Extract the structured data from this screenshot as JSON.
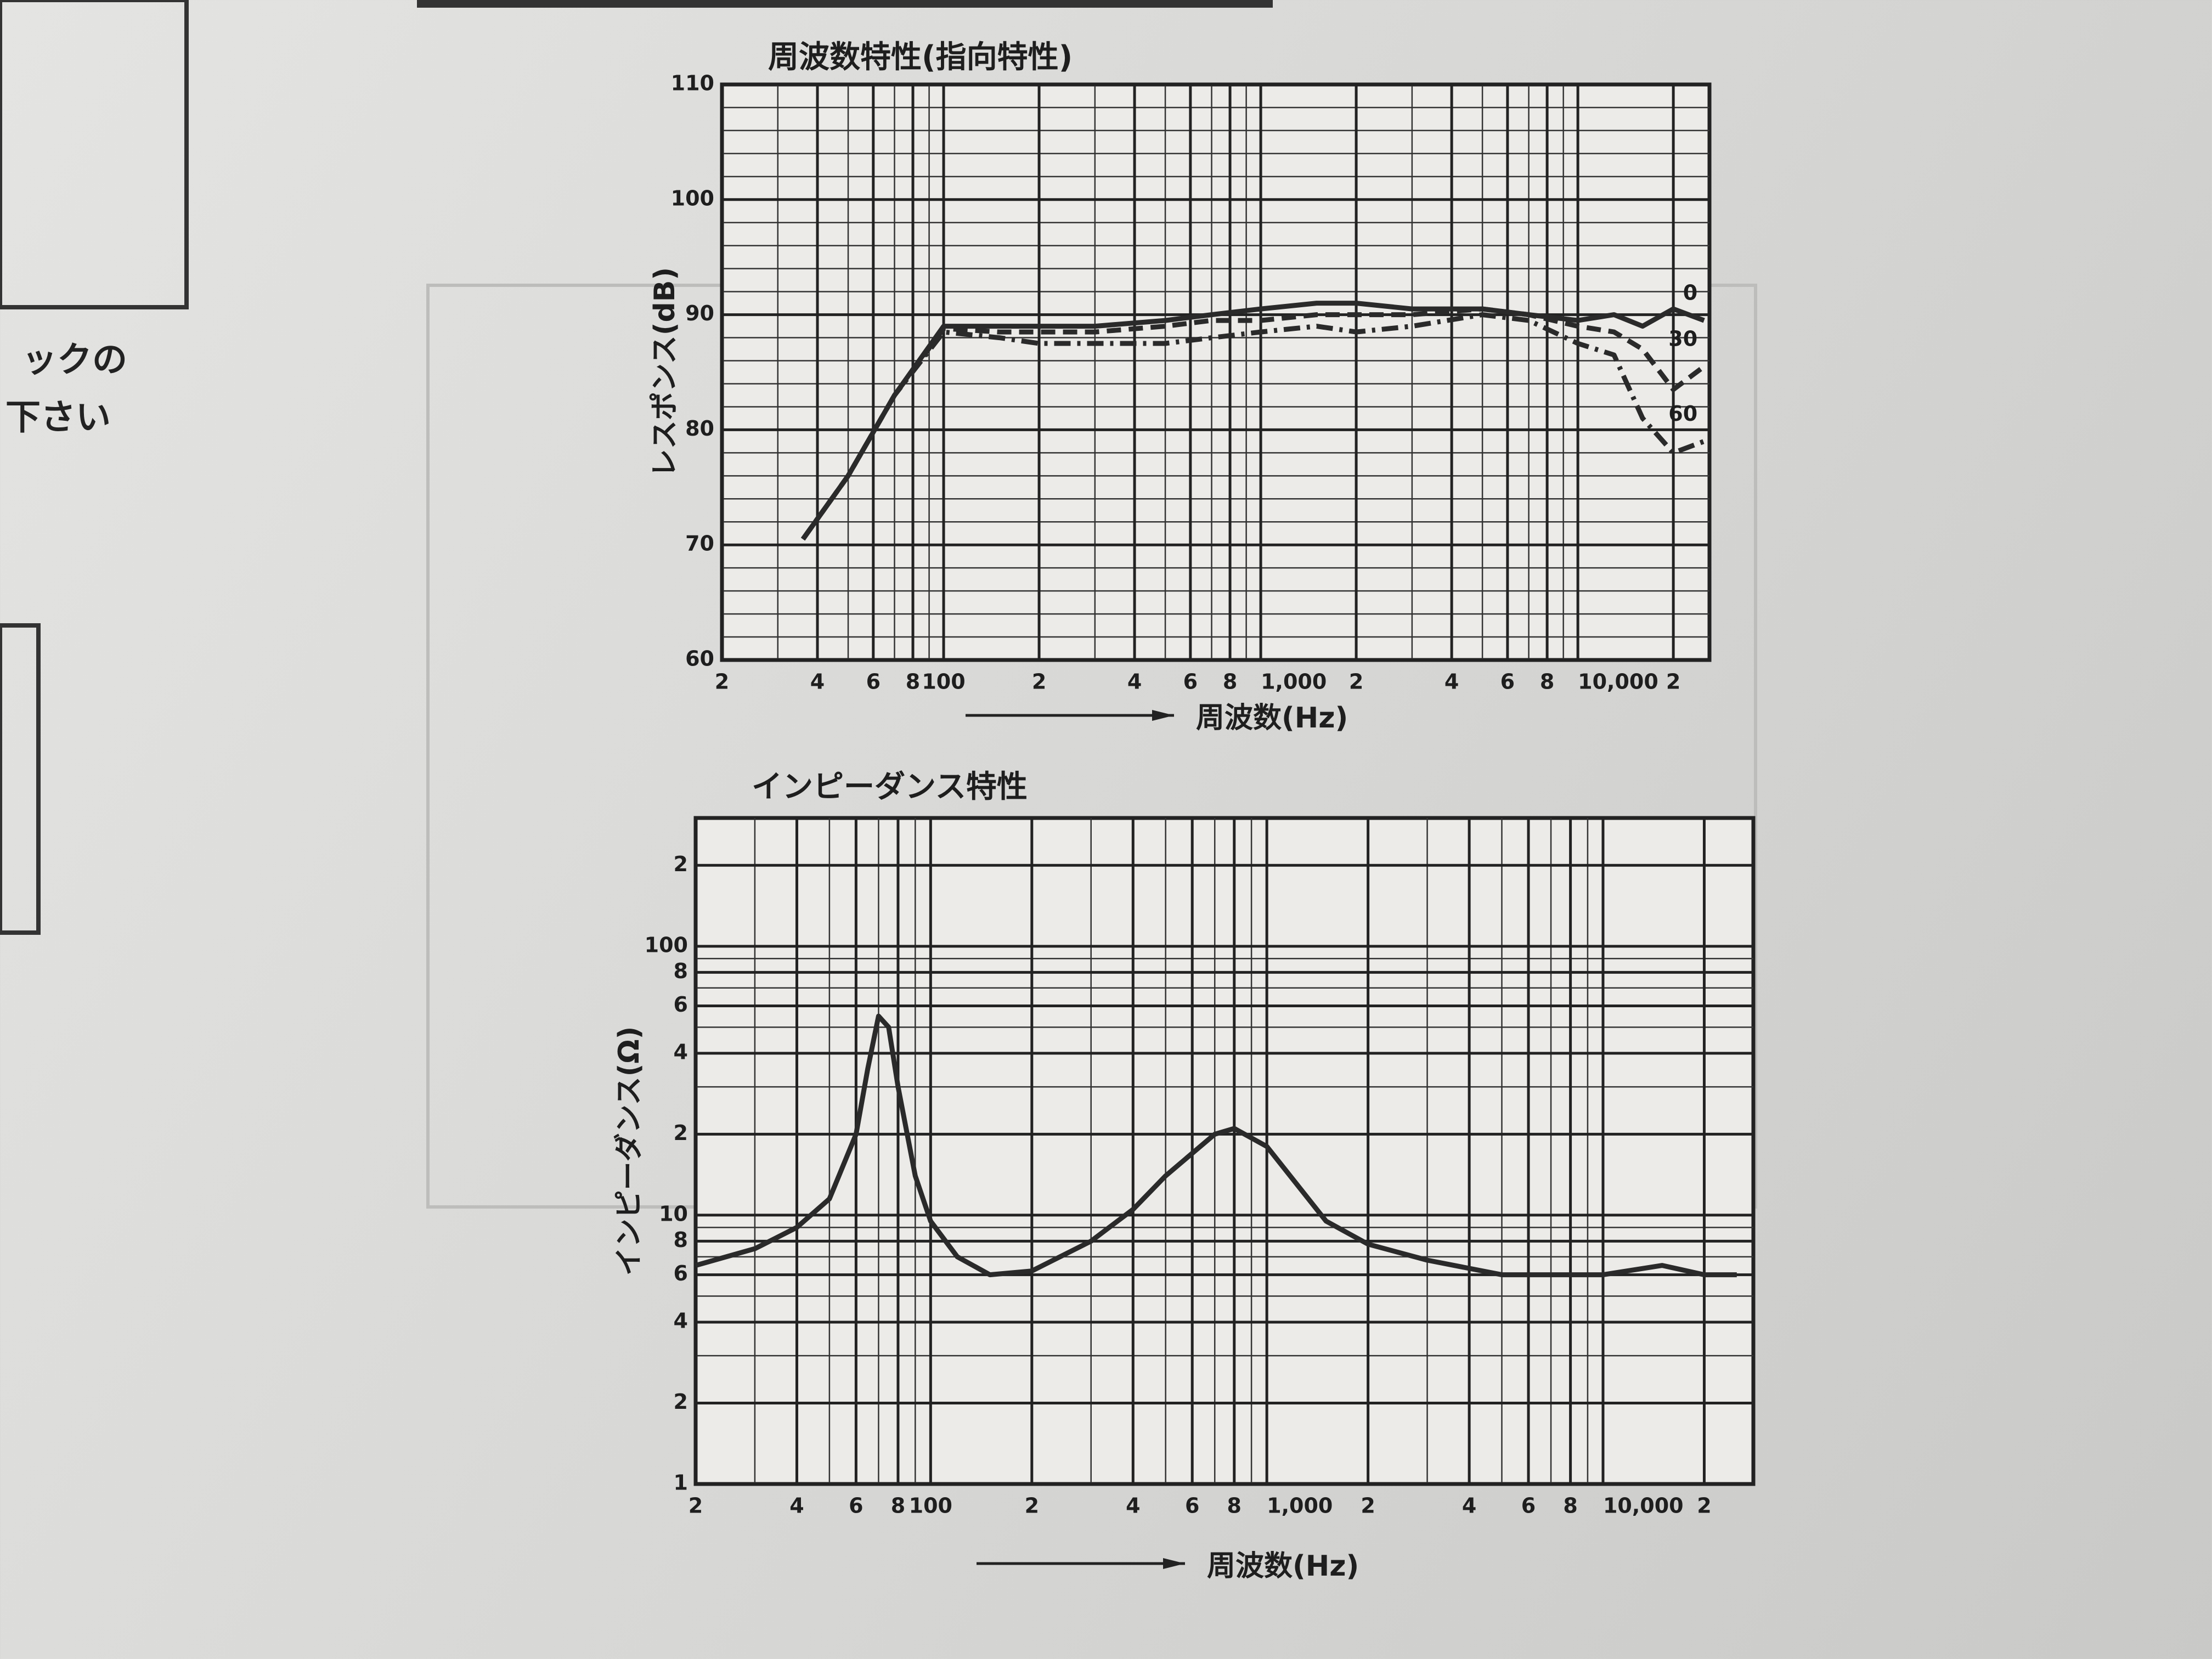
{
  "margin_text": [
    "ックの",
    "下さい"
  ],
  "chart_data": [
    {
      "type": "line",
      "title": "周波数特性(指向特性)",
      "x_label": "周波数(Hz)",
      "y_label": "レスポンス(dB)",
      "x_log": true,
      "y_log": false,
      "grid": true,
      "minor_grid": true,
      "xlim": [
        20,
        26000
      ],
      "ylim": [
        60,
        110
      ],
      "xticks": [
        {
          "value": 20,
          "label": "2"
        },
        {
          "value": 40,
          "label": "4"
        },
        {
          "value": 60,
          "label": "6"
        },
        {
          "value": 80,
          "label": "8"
        },
        100,
        {
          "value": 200,
          "label": "2"
        },
        {
          "value": 400,
          "label": "4"
        },
        {
          "value": 600,
          "label": "6"
        },
        {
          "value": 800,
          "label": "8"
        },
        {
          "value": 1000,
          "label": "1,000"
        },
        {
          "value": 2000,
          "label": "2"
        },
        {
          "value": 4000,
          "label": "4"
        },
        {
          "value": 6000,
          "label": "6"
        },
        {
          "value": 8000,
          "label": "8"
        },
        {
          "value": 10000,
          "label": "10,000"
        },
        {
          "value": 20000,
          "label": "2"
        }
      ],
      "yticks": [
        60,
        70,
        80,
        90,
        100,
        110
      ],
      "x": [
        36,
        50,
        70,
        100,
        150,
        200,
        300,
        500,
        700,
        1000,
        1500,
        2000,
        3000,
        5000,
        7000,
        10000,
        13000,
        16000,
        20000,
        25000
      ],
      "series": [
        {
          "name": "0",
          "color": "#2a2a2a",
          "dash": "solid",
          "values": [
            70.5,
            76,
            83,
            89,
            89,
            89,
            89,
            89.5,
            90,
            90.5,
            91,
            91,
            90.5,
            90.5,
            90,
            89.5,
            90,
            89,
            90.5,
            89.5
          ]
        },
        {
          "name": "30",
          "color": "#2a2a2a",
          "dash": "dashed",
          "values": [
            70.5,
            76,
            83,
            88.8,
            88.5,
            88.5,
            88.5,
            89,
            89.5,
            89.5,
            90,
            90,
            90,
            90.5,
            90,
            89,
            88.5,
            87,
            83.5,
            85.5
          ]
        },
        {
          "name": "60",
          "color": "#2a2a2a",
          "dash": "dashdot",
          "values": [
            70.5,
            76,
            83,
            88.5,
            88,
            87.5,
            87.5,
            87.5,
            88,
            88.5,
            89,
            88.5,
            89,
            90,
            89.5,
            87.5,
            86.5,
            81,
            78,
            79
          ]
        }
      ]
    },
    {
      "type": "line",
      "title": "インピーダンス特性",
      "x_label": "周波数(Hz)",
      "y_label": "インピーダンス(Ω)",
      "x_log": true,
      "y_log": true,
      "grid": true,
      "minor_grid": true,
      "xlim": [
        20,
        28000
      ],
      "ylim": [
        1,
        300
      ],
      "xticks": [
        {
          "value": 20,
          "label": "2"
        },
        {
          "value": 40,
          "label": "4"
        },
        {
          "value": 60,
          "label": "6"
        },
        {
          "value": 80,
          "label": "8"
        },
        100,
        {
          "value": 200,
          "label": "2"
        },
        {
          "value": 400,
          "label": "4"
        },
        {
          "value": 600,
          "label": "6"
        },
        {
          "value": 800,
          "label": "8"
        },
        {
          "value": 1000,
          "label": "1,000"
        },
        {
          "value": 2000,
          "label": "2"
        },
        {
          "value": 4000,
          "label": "4"
        },
        {
          "value": 6000,
          "label": "6"
        },
        {
          "value": 8000,
          "label": "8"
        },
        {
          "value": 10000,
          "label": "10,000"
        },
        {
          "value": 20000,
          "label": "2"
        }
      ],
      "yticks": [
        1,
        2,
        4,
        6,
        8,
        10,
        {
          "value": 20,
          "label": "2"
        },
        {
          "value": 40,
          "label": "4"
        },
        {
          "value": 60,
          "label": "6"
        },
        {
          "value": 80,
          "label": "8"
        },
        100,
        {
          "value": 200,
          "label": "2"
        }
      ],
      "x": [
        20,
        30,
        40,
        50,
        60,
        65,
        70,
        75,
        80,
        90,
        100,
        120,
        150,
        200,
        300,
        400,
        500,
        700,
        800,
        1000,
        1500,
        2000,
        3000,
        5000,
        7000,
        10000,
        15000,
        20000,
        25000
      ],
      "series": [
        {
          "name": null,
          "color": "#2a2a2a",
          "dash": "solid",
          "values": [
            6.5,
            7.5,
            9,
            11.5,
            20,
            35,
            55,
            50,
            30,
            14,
            9.5,
            7,
            6,
            6.2,
            8,
            10.5,
            14,
            20,
            21,
            18,
            9.5,
            7.8,
            6.8,
            6,
            6,
            6,
            6.5,
            6,
            6
          ]
        }
      ]
    }
  ]
}
